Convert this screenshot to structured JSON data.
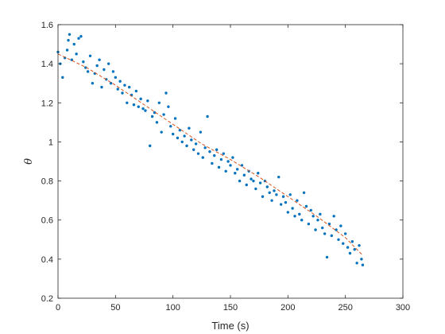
{
  "chart_data": {
    "type": "scatter",
    "title": "",
    "xlabel": "Time (s)",
    "ylabel": "θ",
    "xlim": [
      0,
      300
    ],
    "ylim": [
      0.2,
      1.6
    ],
    "xticks": [
      0,
      50,
      100,
      150,
      200,
      250,
      300
    ],
    "yticks": [
      0.2,
      0.4,
      0.6,
      0.8,
      1.0,
      1.2,
      1.4,
      1.6
    ],
    "xtick_labels": [
      "0",
      "50",
      "100",
      "150",
      "200",
      "250",
      "300"
    ],
    "ytick_labels": [
      "0.2",
      "0.4",
      "0.6",
      "0.8",
      "1",
      "1.2",
      "1.4",
      "1.6"
    ],
    "grid": false,
    "legend": "none",
    "series": [
      {
        "kind": "points",
        "color": "#0072BD",
        "x": [
          0,
          2,
          4,
          6,
          8,
          9,
          10,
          12,
          14,
          16,
          18,
          20,
          22,
          24,
          26,
          28,
          30,
          32,
          34,
          36,
          38,
          40,
          42,
          44,
          46,
          48,
          50,
          52,
          54,
          56,
          58,
          60,
          62,
          64,
          66,
          68,
          70,
          72,
          74,
          76,
          78,
          80,
          82,
          84,
          86,
          88,
          90,
          92,
          94,
          96,
          98,
          100,
          102,
          104,
          106,
          108,
          110,
          112,
          114,
          116,
          118,
          120,
          122,
          124,
          126,
          128,
          130,
          132,
          134,
          136,
          138,
          140,
          142,
          144,
          146,
          148,
          150,
          152,
          154,
          156,
          158,
          160,
          162,
          164,
          166,
          168,
          170,
          172,
          174,
          176,
          178,
          180,
          182,
          184,
          186,
          188,
          190,
          192,
          194,
          196,
          198,
          200,
          202,
          204,
          206,
          208,
          210,
          212,
          214,
          216,
          218,
          220,
          222,
          224,
          226,
          228,
          230,
          232,
          234,
          236,
          238,
          240,
          242,
          244,
          246,
          248,
          250,
          252,
          254,
          256,
          258,
          260,
          262,
          264,
          265
        ],
        "y": [
          1.46,
          1.4,
          1.33,
          1.43,
          1.47,
          1.52,
          1.55,
          1.42,
          1.5,
          1.45,
          1.53,
          1.54,
          1.41,
          1.38,
          1.36,
          1.44,
          1.3,
          1.35,
          1.39,
          1.42,
          1.28,
          1.37,
          1.32,
          1.4,
          1.3,
          1.36,
          1.33,
          1.27,
          1.31,
          1.25,
          1.29,
          1.2,
          1.28,
          1.24,
          1.19,
          1.26,
          1.18,
          1.22,
          1.17,
          1.16,
          1.21,
          0.98,
          1.13,
          1.15,
          1.1,
          1.2,
          1.05,
          1.14,
          1.25,
          1.18,
          1.08,
          1.04,
          1.12,
          1.02,
          1.06,
          1.0,
          1.03,
          0.98,
          1.07,
          1.01,
          0.96,
          0.99,
          0.94,
          1.05,
          0.92,
          0.97,
          1.13,
          0.95,
          0.89,
          0.93,
          0.96,
          0.87,
          0.91,
          0.94,
          0.85,
          0.9,
          0.88,
          0.92,
          0.84,
          0.86,
          0.8,
          0.88,
          0.83,
          0.78,
          0.85,
          0.81,
          0.8,
          0.76,
          0.84,
          0.79,
          0.72,
          0.8,
          0.77,
          0.74,
          0.7,
          0.75,
          0.73,
          0.82,
          0.68,
          0.72,
          0.69,
          0.64,
          0.73,
          0.66,
          0.62,
          0.7,
          0.63,
          0.6,
          0.74,
          0.67,
          0.58,
          0.65,
          0.62,
          0.55,
          0.6,
          0.63,
          0.56,
          0.53,
          0.41,
          0.58,
          0.52,
          0.62,
          0.55,
          0.5,
          0.57,
          0.48,
          0.53,
          0.46,
          0.43,
          0.49,
          0.45,
          0.38,
          0.47,
          0.4,
          0.37
        ]
      },
      {
        "kind": "fit-line",
        "color": "#D95319",
        "dash": "dashed",
        "x": [
          0,
          25,
          50,
          75,
          100,
          125,
          150,
          175,
          200,
          225,
          250,
          265
        ],
        "y": [
          1.45,
          1.38,
          1.29,
          1.19,
          1.09,
          0.99,
          0.91,
          0.82,
          0.72,
          0.62,
          0.51,
          0.42
        ]
      }
    ]
  }
}
